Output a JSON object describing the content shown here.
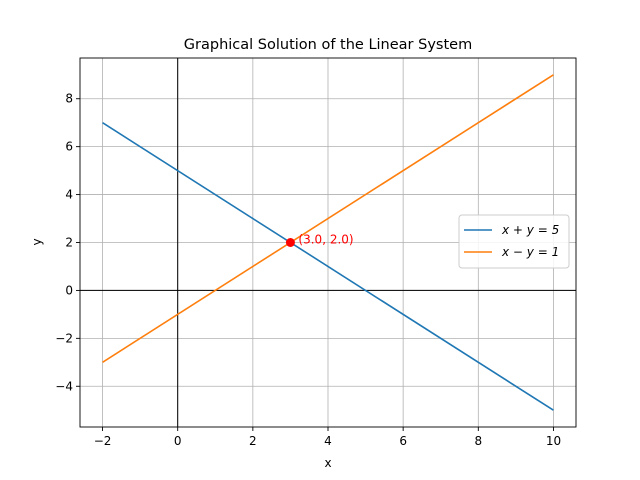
{
  "chart_data": {
    "type": "line",
    "title": "Graphical Solution of the Linear System",
    "xlabel": "x",
    "ylabel": "y",
    "xlim": [
      -2.6,
      10.6
    ],
    "ylim": [
      -5.7,
      9.7
    ],
    "xticks": [
      -2,
      0,
      2,
      4,
      6,
      8,
      10
    ],
    "yticks": [
      -4,
      -2,
      0,
      2,
      4,
      6,
      8
    ],
    "x_tick_labels": [
      "−2",
      "0",
      "2",
      "4",
      "6",
      "8",
      "10"
    ],
    "y_tick_labels": [
      "−4",
      "−2",
      "0",
      "2",
      "4",
      "6",
      "8"
    ],
    "grid": true,
    "legend_position": "right",
    "series": [
      {
        "name": "x + y = 5",
        "x": [
          -2,
          10
        ],
        "y": [
          7,
          -5
        ],
        "color": "#1f77b4"
      },
      {
        "name": "x − y = 1",
        "x": [
          -2,
          10
        ],
        "y": [
          -3,
          9
        ],
        "color": "#ff7f0e"
      }
    ],
    "reference_lines": {
      "horizontal_y": 0,
      "vertical_x": 0,
      "color": "#000000"
    },
    "intersection": {
      "x": 3.0,
      "y": 2.0,
      "label": "(3.0, 2.0)",
      "color": "#ff0000"
    }
  }
}
